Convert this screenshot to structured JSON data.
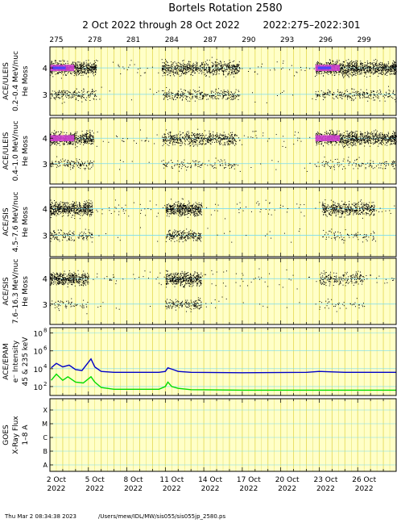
{
  "title": "Bortels Rotation 2580",
  "subtitle_dates": "2 Oct 2022 through 28 Oct 2022",
  "subtitle_doy": "2022:275–2022:301",
  "footer": {
    "timestamp": "Thu Mar  2 08:34:38 2023",
    "path": "/Users/mew/IDL/MW/sis055/sis055jp_2580.ps"
  },
  "colors": {
    "panel_bg": "#ffffc8",
    "vgrid": "#e6dc5a",
    "hgrid": "#78dcf0",
    "dots": "#000000",
    "dense_outer": "#d040d0",
    "dense_inner": "#4040ff",
    "epam_high": "#0000c8",
    "epam_low": "#00dc00"
  },
  "chart_data": {
    "type": "scatter",
    "x_range_doy": [
      275,
      302
    ],
    "top_axis_ticks": [
      "275",
      "278",
      "281",
      "284",
      "287",
      "290",
      "293",
      "296",
      "299"
    ],
    "bottom_axis_ticks": [
      {
        "date": "2 Oct",
        "year": "2022"
      },
      {
        "date": "5 Oct",
        "year": "2022"
      },
      {
        "date": "8 Oct",
        "year": "2022"
      },
      {
        "date": "11 Oct",
        "year": "2022"
      },
      {
        "date": "14 Oct",
        "year": "2022"
      },
      {
        "date": "17 Oct",
        "year": "2022"
      },
      {
        "date": "20 Oct",
        "year": "2022"
      },
      {
        "date": "23 Oct",
        "year": "2022"
      },
      {
        "date": "26 Oct",
        "year": "2022"
      }
    ],
    "panels": [
      {
        "id": "uleis_low",
        "ylabel": [
          "ACE/ULEIS",
          "0.2–0.4 MeV/nuc",
          "He Moss"
        ],
        "yticks": [
          "3",
          "4"
        ],
        "ylim": [
          2.2,
          4.8
        ],
        "mass_bands": [
          4,
          3
        ],
        "activity": [
          {
            "doy_start": 275.0,
            "doy_end": 278.6,
            "density_he4": 0.9,
            "density_he3": 0.5
          },
          {
            "doy_start": 283.7,
            "doy_end": 289.8,
            "density_he4": 0.6,
            "density_he3": 0.5
          },
          {
            "doy_start": 295.7,
            "doy_end": 302.0,
            "density_he4": 0.9,
            "density_he3": 0.4
          }
        ]
      },
      {
        "id": "uleis_high",
        "ylabel": [
          "ACE/ULEIS",
          "0.4–1.0 MeV/nuc",
          "He Moss"
        ],
        "yticks": [
          "3",
          "4"
        ],
        "ylim": [
          2.2,
          4.8
        ],
        "mass_bands": [
          4,
          3
        ],
        "activity": [
          {
            "doy_start": 275.0,
            "doy_end": 278.4,
            "density_he4": 0.8,
            "density_he3": 0.4
          },
          {
            "doy_start": 283.7,
            "doy_end": 289.5,
            "density_he4": 0.5,
            "density_he3": 0.2
          },
          {
            "doy_start": 295.7,
            "doy_end": 302.0,
            "density_he4": 0.8,
            "density_he3": 0.2
          }
        ]
      },
      {
        "id": "sis_low",
        "ylabel": [
          "ACE/SIS",
          "4.5–7.6 MeV/nuc",
          "He Moss"
        ],
        "yticks": [
          "3",
          "4"
        ],
        "ylim": [
          2.2,
          4.8
        ],
        "mass_bands": [
          4,
          3
        ],
        "activity": [
          {
            "doy_start": 275.0,
            "doy_end": 278.3,
            "density_he4": 0.9,
            "density_he3": 0.4
          },
          {
            "doy_start": 284.0,
            "doy_end": 286.8,
            "density_he4": 0.9,
            "density_he3": 0.8
          },
          {
            "doy_start": 296.2,
            "doy_end": 300.3,
            "density_he4": 0.6,
            "density_he3": 0.2
          }
        ]
      },
      {
        "id": "sis_high",
        "ylabel": [
          "ACE/SIS",
          "7.6–16.3 MeV/nuc",
          "He Moss"
        ],
        "yticks": [
          "3",
          "4"
        ],
        "ylim": [
          2.2,
          4.8
        ],
        "mass_bands": [
          4,
          3
        ],
        "activity": [
          {
            "doy_start": 275.0,
            "doy_end": 278.0,
            "density_he4": 0.8,
            "density_he3": 0.2
          },
          {
            "doy_start": 284.0,
            "doy_end": 286.8,
            "density_he4": 0.8,
            "density_he3": 0.6
          },
          {
            "doy_start": 296.0,
            "doy_end": 299.5,
            "density_he4": 0.3,
            "density_he3": 0.1
          }
        ]
      },
      {
        "id": "epam",
        "ylabel": [
          "ACE/EPAM",
          "e⁻ Intensity",
          "45 & 235 keV"
        ],
        "scale": "log",
        "ylim_exp": [
          1,
          8.6
        ],
        "yticks": [
          {
            "mant": "10",
            "exp": "2"
          },
          {
            "mant": "10",
            "exp": "4"
          },
          {
            "mant": "10",
            "exp": "6"
          },
          {
            "mant": "10",
            "exp": "8"
          }
        ],
        "series": [
          {
            "key": "45keV",
            "log10_values": [
              [
                275.1,
                4.1
              ],
              [
                275.5,
                4.6
              ],
              [
                276.0,
                4.2
              ],
              [
                276.5,
                4.4
              ],
              [
                277.0,
                3.9
              ],
              [
                277.5,
                3.8
              ],
              [
                278.2,
                5.1
              ],
              [
                278.5,
                4.2
              ],
              [
                279.0,
                3.7
              ],
              [
                280.0,
                3.6
              ],
              [
                283.5,
                3.6
              ],
              [
                284.0,
                3.7
              ],
              [
                284.2,
                4.1
              ],
              [
                284.6,
                3.9
              ],
              [
                285.0,
                3.7
              ],
              [
                286.0,
                3.6
              ],
              [
                290.0,
                3.55
              ],
              [
                295.0,
                3.6
              ],
              [
                296.0,
                3.7
              ],
              [
                298.0,
                3.6
              ],
              [
                302.0,
                3.6
              ]
            ]
          },
          {
            "key": "235keV",
            "log10_values": [
              [
                275.1,
                2.7
              ],
              [
                275.5,
                3.4
              ],
              [
                276.0,
                2.7
              ],
              [
                276.4,
                3.1
              ],
              [
                277.0,
                2.5
              ],
              [
                277.6,
                2.4
              ],
              [
                278.2,
                3.1
              ],
              [
                278.5,
                2.5
              ],
              [
                279.0,
                1.9
              ],
              [
                280.0,
                1.7
              ],
              [
                283.5,
                1.7
              ],
              [
                284.0,
                2.0
              ],
              [
                284.2,
                2.5
              ],
              [
                284.5,
                2.0
              ],
              [
                285.0,
                1.8
              ],
              [
                286.0,
                1.65
              ],
              [
                290.0,
                1.6
              ],
              [
                295.0,
                1.6
              ],
              [
                298.0,
                1.6
              ],
              [
                302.0,
                1.6
              ]
            ]
          }
        ]
      },
      {
        "id": "goes",
        "ylabel": [
          "GOES",
          "X-Ray Flux",
          "1–8 A"
        ],
        "yticks": [
          "A",
          "B",
          "C",
          "M",
          "X"
        ]
      }
    ]
  }
}
